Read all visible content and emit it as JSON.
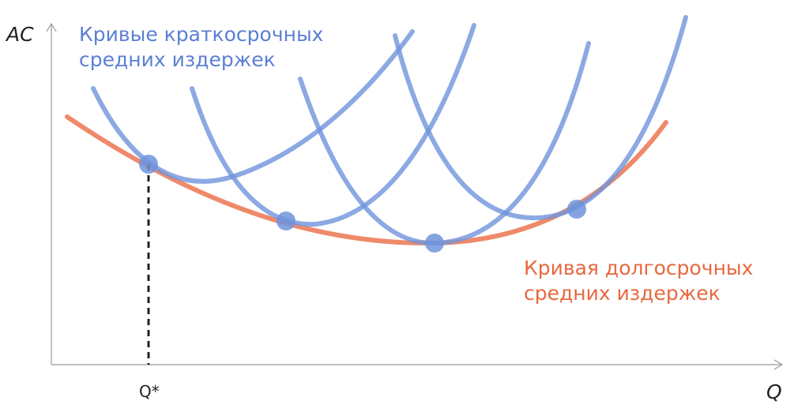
{
  "axes": {
    "y_label": "AC",
    "x_label": "Q",
    "x_marker": "Q*"
  },
  "annotations": {
    "short_run": [
      "Кривые краткосрочных",
      "средних издержек"
    ],
    "long_run": [
      "Кривая долгосрочных",
      "средних издержек"
    ]
  }
}
